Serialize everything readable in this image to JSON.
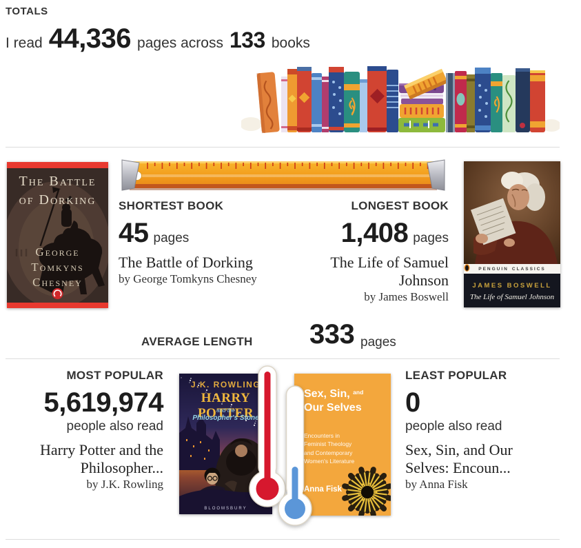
{
  "totals": {
    "label": "TOTALS",
    "prefix": "I read",
    "pages_value": "44,336",
    "middle": "pages across",
    "books_value": "133",
    "suffix": "books"
  },
  "length": {
    "shortest": {
      "label": "SHORTEST BOOK",
      "value": "45",
      "unit": "pages",
      "title": "The Battle of Dorking",
      "author": "by George Tomkyns Chesney"
    },
    "longest": {
      "label": "LONGEST BOOK",
      "value": "1,408",
      "unit": "pages",
      "title": "The Life of Samuel Johnson",
      "author": "by James Boswell"
    },
    "average": {
      "label": "AVERAGE LENGTH",
      "value": "333",
      "unit": "pages"
    }
  },
  "popularity": {
    "most": {
      "label": "MOST POPULAR",
      "value": "5,619,974",
      "unit": "people also read",
      "title": "Harry Potter and the Philosopher...",
      "author": "by J.K. Rowling"
    },
    "least": {
      "label": "LEAST POPULAR",
      "value": "0",
      "unit": "people also read",
      "title": "Sex, Sin, and Our Selves: Encoun...",
      "author": "by Anna Fisk"
    }
  },
  "covers": {
    "dorking": {
      "title_line1": "The Battle",
      "title_line2": "of Dorking",
      "author_line1": "George",
      "author_line2": "Tomkyns",
      "author_line3": "Chesney"
    },
    "johnson": {
      "imprint_left": "PENGUIN",
      "imprint_right": "CLASSICS",
      "author": "JAMES BOSWELL",
      "title": "The Life of Samuel Johnson"
    },
    "potter": {
      "author": "J.K. ROWLING",
      "title": "HARRY POTTER",
      "subtitle1": "and the",
      "subtitle2": "Philosopher's Stone",
      "publisher": "BLOOMSBURY"
    },
    "sexsin": {
      "title1": "Sex, Sin,",
      "title1b": "and",
      "title2": "Our Selves",
      "sub1": "Encounters in",
      "sub2": "Feminist Theology",
      "sub3": "and Contemporary",
      "sub4": "Women's Literature",
      "author": "Anna Fisk"
    }
  },
  "icons": {
    "bookshelf": "bookshelf-illustration",
    "ruler": "ruler-illustration",
    "thermometer_high": "thermometer-full-icon",
    "thermometer_low": "thermometer-low-icon"
  },
  "colors": {
    "thermometer_red": "#d6182e",
    "thermometer_blue": "#5b96d8",
    "ruler_orange": "#f5a623",
    "divider": "#dcdcdc",
    "text": "#333333"
  }
}
